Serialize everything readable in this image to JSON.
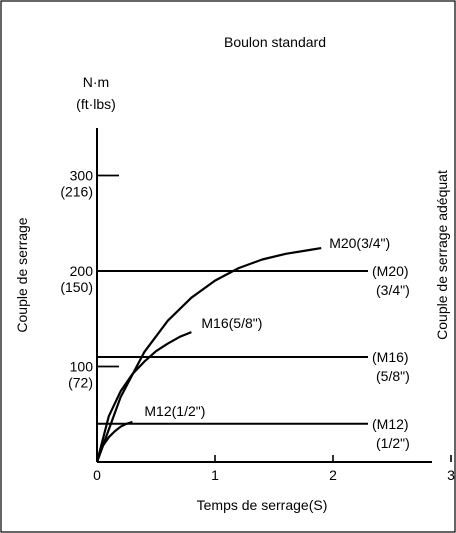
{
  "chart_data": {
    "type": "line",
    "title": "Boulon standard",
    "xlabel": "Temps de serrage(S)",
    "ylabel": "Couple de serrage",
    "right_label": "Couple de serrage adéquat",
    "y_unit_top": "N·m",
    "y_unit_bottom": "(ft·lbs)",
    "xlim": [
      0,
      3.5
    ],
    "ylim": [
      0,
      350
    ],
    "x_ticks": [
      {
        "value": 0,
        "label": "0"
      },
      {
        "value": 1,
        "label": "1"
      },
      {
        "value": 2,
        "label": "2"
      },
      {
        "value": 3,
        "label": "3"
      }
    ],
    "y_ticks": [
      {
        "value": 100,
        "label": "100",
        "sub": "(72)"
      },
      {
        "value": 200,
        "label": "200",
        "sub": "(150)"
      },
      {
        "value": 300,
        "label": "300",
        "sub": "(216)"
      }
    ],
    "series": [
      {
        "name": "M20(3/4\")",
        "points": [
          [
            0,
            0
          ],
          [
            0.2,
            68
          ],
          [
            0.4,
            115
          ],
          [
            0.6,
            148
          ],
          [
            0.8,
            172
          ],
          [
            1.0,
            190
          ],
          [
            1.2,
            203
          ],
          [
            1.4,
            212
          ],
          [
            1.6,
            218
          ],
          [
            1.8,
            222
          ],
          [
            1.9,
            224
          ]
        ],
        "target": 200,
        "target_label": "(M20)",
        "target_label_sub": "(3/4\")"
      },
      {
        "name": "M16(5/8\")",
        "points": [
          [
            0,
            0
          ],
          [
            0.1,
            48
          ],
          [
            0.2,
            74
          ],
          [
            0.3,
            92
          ],
          [
            0.4,
            105
          ],
          [
            0.5,
            116
          ],
          [
            0.6,
            124
          ],
          [
            0.7,
            131
          ],
          [
            0.8,
            136
          ]
        ],
        "target": 110,
        "target_label": "(M16)",
        "target_label_sub": "(5/8\")"
      },
      {
        "name": "M12(1/2\")",
        "points": [
          [
            0,
            0
          ],
          [
            0.05,
            17
          ],
          [
            0.1,
            26
          ],
          [
            0.15,
            32
          ],
          [
            0.2,
            37
          ],
          [
            0.25,
            40
          ],
          [
            0.3,
            42
          ]
        ],
        "target": 40,
        "target_label": "(M12)",
        "target_label_sub": "(1/2\")"
      }
    ]
  }
}
